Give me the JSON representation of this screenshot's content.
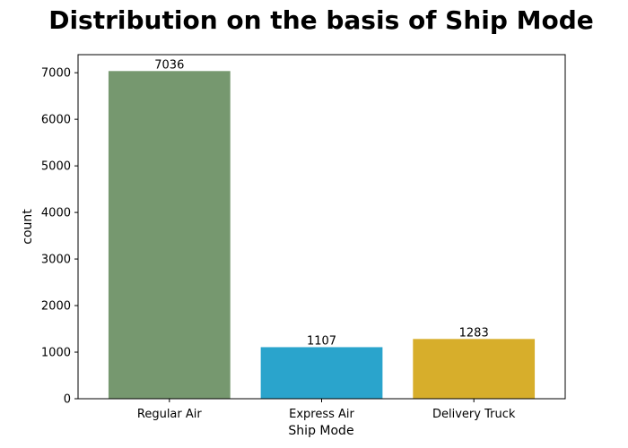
{
  "chart_data": {
    "type": "bar",
    "title": "Distribution on the basis of Ship Mode",
    "xlabel": "Ship Mode",
    "ylabel": "count",
    "categories": [
      "Regular Air",
      "Express Air",
      "Delivery Truck"
    ],
    "values": [
      7036,
      1107,
      1283
    ],
    "data_labels": [
      "7036",
      "1107",
      "1283"
    ],
    "colors": [
      "#76986f",
      "#2aa4cc",
      "#d7ae2b"
    ],
    "y_ticks": [
      0,
      1000,
      2000,
      3000,
      4000,
      5000,
      6000,
      7000
    ],
    "y_tick_labels": [
      "0",
      "1000",
      "2000",
      "3000",
      "4000",
      "5000",
      "6000",
      "7000"
    ],
    "ylim": [
      0,
      7388
    ],
    "grid": false,
    "legend": "none"
  }
}
